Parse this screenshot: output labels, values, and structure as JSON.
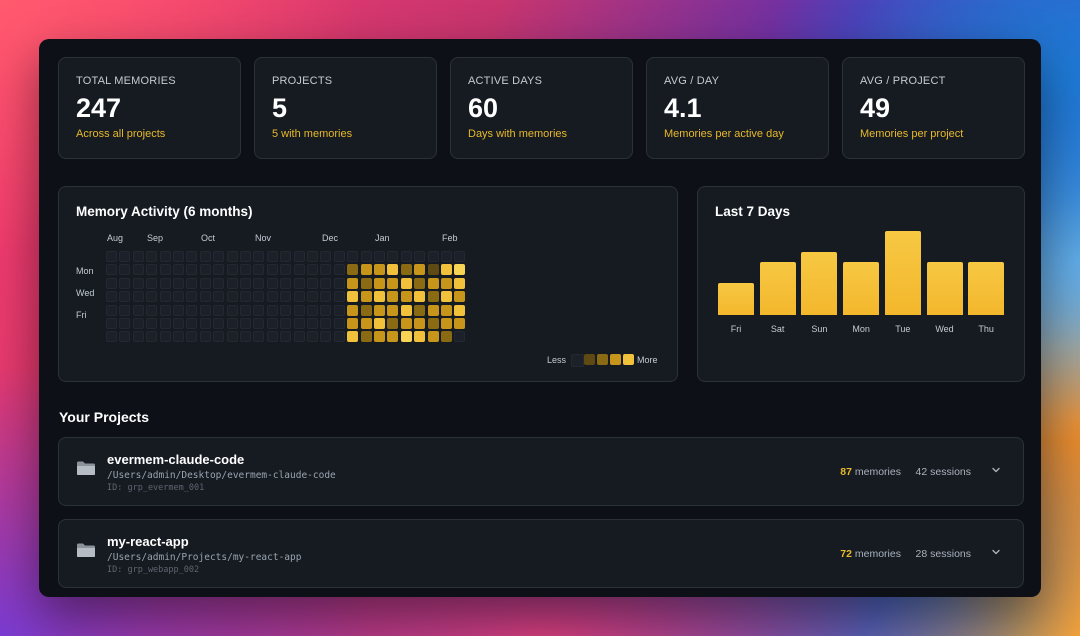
{
  "stats": [
    {
      "label": "TOTAL MEMORIES",
      "value": "247",
      "sub": "Across all projects"
    },
    {
      "label": "PROJECTS",
      "value": "5",
      "sub": "5 with memories"
    },
    {
      "label": "ACTIVE DAYS",
      "value": "60",
      "sub": "Days with memories"
    },
    {
      "label": "AVG / DAY",
      "value": "4.1",
      "sub": "Memories per active day"
    },
    {
      "label": "AVG / PROJECT",
      "value": "49",
      "sub": "Memories per project"
    }
  ],
  "heatmap": {
    "title": "Memory Activity (6 months)",
    "months": [
      "Aug",
      "Sep",
      "Oct",
      "Nov",
      "Dec",
      "Jan",
      "Feb"
    ],
    "days": [
      "Mon",
      "Wed",
      "Fri"
    ],
    "legend": {
      "less": "Less",
      "more": "More"
    },
    "colors": [
      "#1c2028",
      "#5e4a12",
      "#8a6b14",
      "#c7951a",
      "#f2c13c",
      "#f8d455"
    ],
    "weeks": [
      [
        0,
        0,
        0,
        0,
        0,
        0,
        0
      ],
      [
        0,
        0,
        0,
        0,
        0,
        0,
        0
      ],
      [
        0,
        0,
        0,
        0,
        0,
        0,
        0
      ],
      [
        0,
        0,
        0,
        0,
        0,
        0,
        0
      ],
      [
        0,
        0,
        0,
        0,
        0,
        0,
        0
      ],
      [
        0,
        0,
        0,
        0,
        0,
        0,
        0
      ],
      [
        0,
        0,
        0,
        0,
        0,
        0,
        0
      ],
      [
        0,
        0,
        0,
        0,
        0,
        0,
        0
      ],
      [
        0,
        0,
        0,
        0,
        0,
        0,
        0
      ],
      [
        0,
        0,
        0,
        0,
        0,
        0,
        0
      ],
      [
        0,
        0,
        0,
        0,
        0,
        0,
        0
      ],
      [
        0,
        0,
        0,
        0,
        0,
        0,
        0
      ],
      [
        0,
        0,
        0,
        0,
        0,
        0,
        0
      ],
      [
        0,
        0,
        0,
        0,
        0,
        0,
        0
      ],
      [
        0,
        0,
        0,
        0,
        0,
        0,
        0
      ],
      [
        0,
        0,
        0,
        0,
        0,
        0,
        0
      ],
      [
        0,
        0,
        0,
        0,
        0,
        0,
        0
      ],
      [
        0,
        0,
        0,
        0,
        0,
        0,
        0
      ],
      [
        0,
        2,
        3,
        4,
        3,
        3,
        4
      ],
      [
        0,
        3,
        2,
        3,
        2,
        3,
        2
      ],
      [
        0,
        3,
        3,
        4,
        3,
        4,
        3
      ],
      [
        0,
        4,
        3,
        3,
        3,
        2,
        3
      ],
      [
        0,
        2,
        4,
        3,
        4,
        3,
        5
      ],
      [
        0,
        3,
        2,
        4,
        2,
        3,
        4
      ],
      [
        0,
        1,
        3,
        2,
        3,
        2,
        3
      ],
      [
        0,
        4,
        3,
        4,
        3,
        3,
        2
      ],
      [
        0,
        5,
        4,
        3,
        4,
        3,
        0
      ]
    ]
  },
  "last7": {
    "title": "Last 7 Days",
    "days": [
      "Fri",
      "Sat",
      "Sun",
      "Mon",
      "Tue",
      "Wed",
      "Thu"
    ],
    "values": [
      3,
      5,
      6,
      5,
      8,
      5,
      5
    ],
    "max": 8
  },
  "projects_title": "Your Projects",
  "projects": [
    {
      "name": "evermem-claude-code",
      "path": "/Users/admin/Desktop/evermem-claude-code",
      "id": "ID: grp_evermem_001",
      "memories": "87",
      "memories_label": "memories",
      "sessions": "42 sessions",
      "icon": "folder-icon"
    },
    {
      "name": "my-react-app",
      "path": "/Users/admin/Projects/my-react-app",
      "id": "ID: grp_webapp_002",
      "memories": "72",
      "memories_label": "memories",
      "sessions": "28 sessions",
      "icon": "folder-icon"
    }
  ],
  "colors": {
    "accent": "#e8b92a",
    "bar": "#f3b72c",
    "window": "#0d1117",
    "card": "#161b22"
  }
}
